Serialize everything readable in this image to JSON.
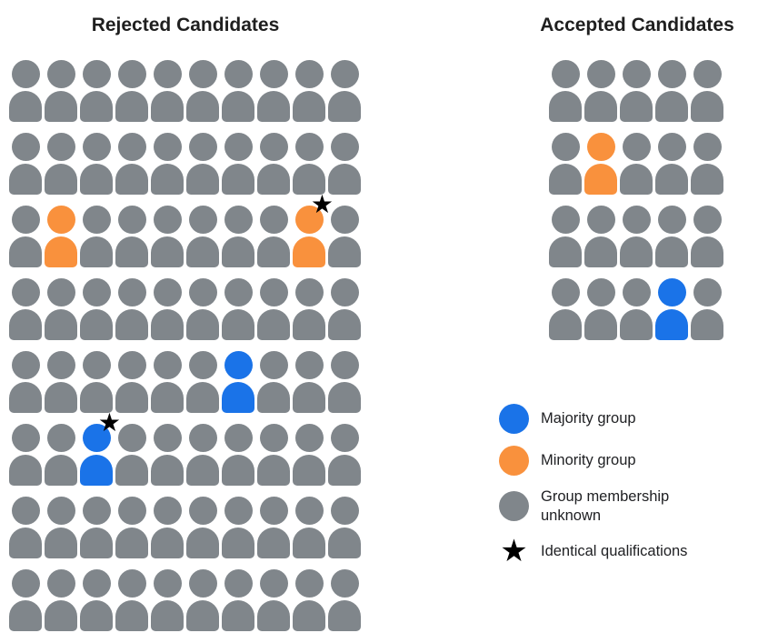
{
  "titles": {
    "rejected": "Rejected Candidates",
    "accepted": "Accepted Candidates"
  },
  "colors": {
    "majority": "#1a73e8",
    "minority": "#f9913d",
    "unknown": "#80868b",
    "star": "#000000"
  },
  "cell_codes": {
    "U": "group membership unknown (gray)",
    "O": "minority group (orange)",
    "B": "majority group (blue)",
    "*": "identical qualifications star"
  },
  "rejected_grid": {
    "columns": 10,
    "rows": [
      [
        "U",
        "U",
        "U",
        "U",
        "U",
        "U",
        "U",
        "U",
        "U",
        "U"
      ],
      [
        "U",
        "U",
        "U",
        "U",
        "U",
        "U",
        "U",
        "U",
        "U",
        "U"
      ],
      [
        "U",
        "O",
        "U",
        "U",
        "U",
        "U",
        "U",
        "U",
        "O*",
        "U"
      ],
      [
        "U",
        "U",
        "U",
        "U",
        "U",
        "U",
        "U",
        "U",
        "U",
        "U"
      ],
      [
        "U",
        "U",
        "U",
        "U",
        "U",
        "U",
        "B",
        "U",
        "U",
        "U"
      ],
      [
        "U",
        "U",
        "B*",
        "U",
        "U",
        "U",
        "U",
        "U",
        "U",
        "U"
      ],
      [
        "U",
        "U",
        "U",
        "U",
        "U",
        "U",
        "U",
        "U",
        "U",
        "U"
      ],
      [
        "U",
        "U",
        "U",
        "U",
        "U",
        "U",
        "U",
        "U",
        "U",
        "U"
      ]
    ]
  },
  "accepted_grid": {
    "columns": 5,
    "rows": [
      [
        "U",
        "U",
        "U",
        "U",
        "U"
      ],
      [
        "U",
        "O",
        "U",
        "U",
        "U"
      ],
      [
        "U",
        "U",
        "U",
        "U",
        "U"
      ],
      [
        "U",
        "U",
        "U",
        "B",
        "U"
      ]
    ]
  },
  "legend": {
    "items": [
      {
        "swatch": "circle",
        "group": "majority",
        "label": "Majority group"
      },
      {
        "swatch": "circle",
        "group": "minority",
        "label": "Minority group"
      },
      {
        "swatch": "circle",
        "group": "unknown",
        "label": "Group membership\nunknown"
      },
      {
        "swatch": "star",
        "group": "star",
        "label": "Identical qualifications"
      }
    ]
  },
  "star_glyph": "★"
}
